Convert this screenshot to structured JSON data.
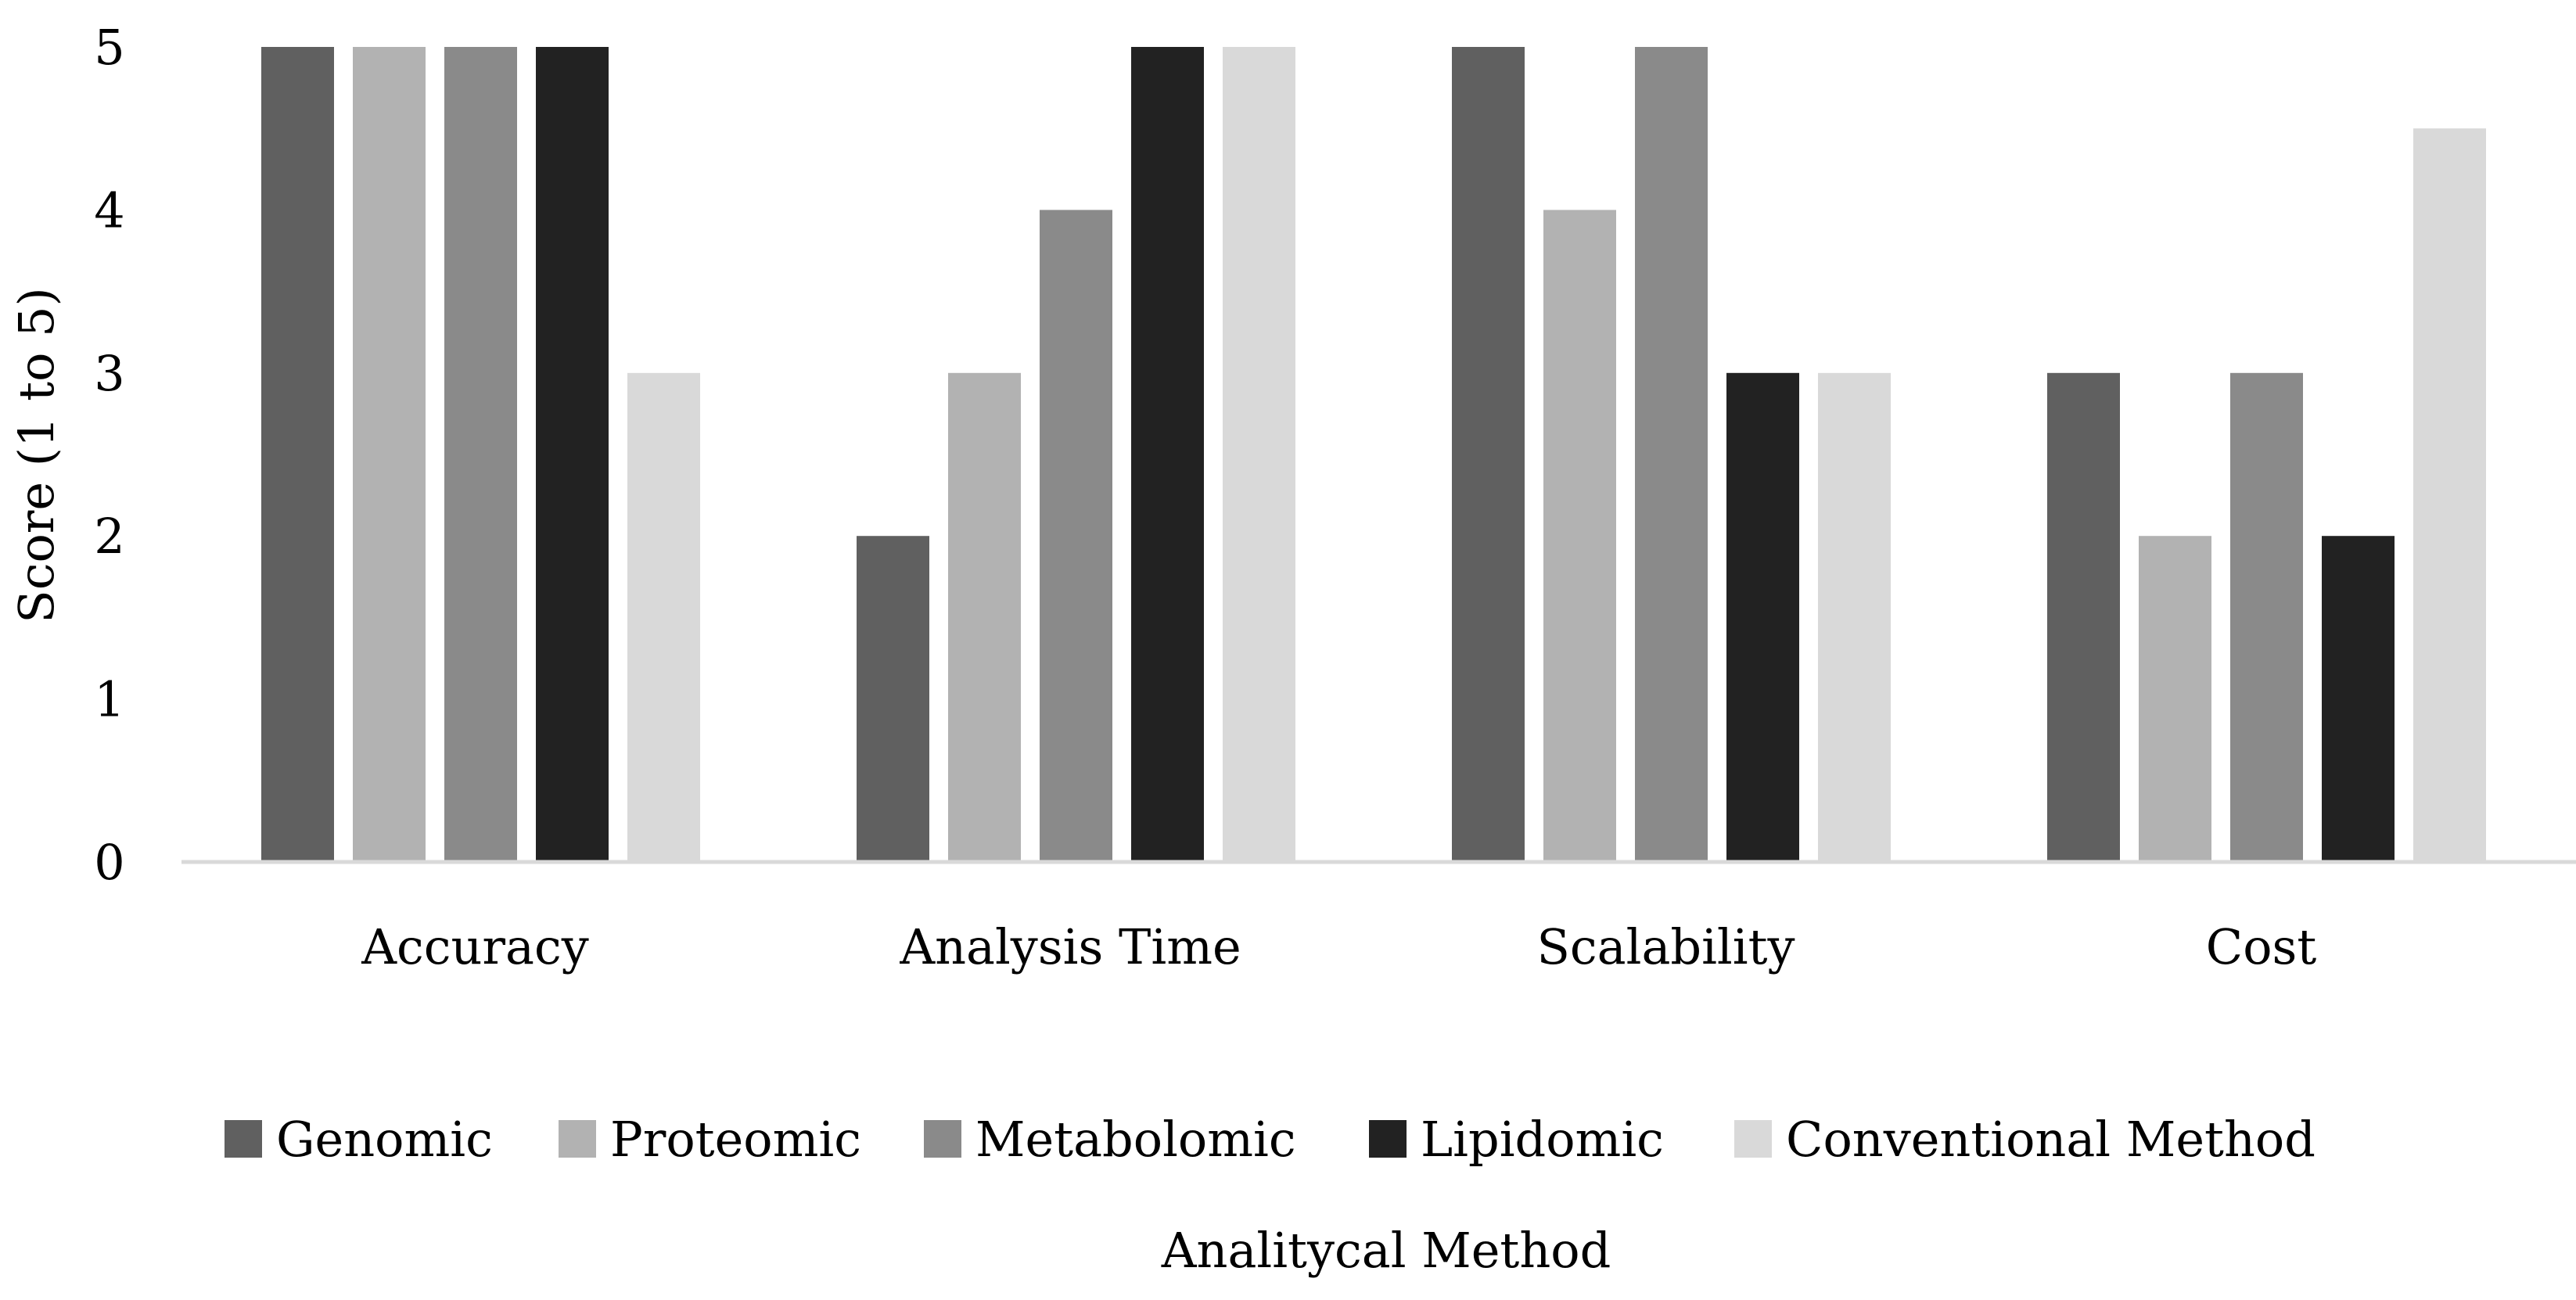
{
  "chart_data": {
    "type": "bar",
    "categories": [
      "Accuracy",
      "Analysis Time",
      "Scalability",
      "Cost"
    ],
    "series": [
      {
        "name": "Genomic",
        "values": [
          5,
          2,
          5,
          3
        ],
        "color": "#606060"
      },
      {
        "name": "Proteomic",
        "values": [
          5,
          3,
          4,
          2
        ],
        "color": "#b2b2b2"
      },
      {
        "name": "Metabolomic",
        "values": [
          5,
          4,
          5,
          3
        ],
        "color": "#8a8a8a"
      },
      {
        "name": "Lipidomic",
        "values": [
          5,
          5,
          3,
          2
        ],
        "color": "#222222"
      },
      {
        "name": "Conventional Method",
        "values": [
          3,
          5,
          3,
          4.5
        ],
        "color": "#d9d9d9"
      }
    ],
    "xlabel": "Analitycal Method",
    "ylabel": "Score (1 to 5)",
    "ylim": [
      0,
      5
    ],
    "yticks": [
      "0",
      "1",
      "2",
      "3",
      "4",
      "5"
    ],
    "grid": false,
    "legend_position": "bottom",
    "axis_color": "#d9d9d9"
  }
}
